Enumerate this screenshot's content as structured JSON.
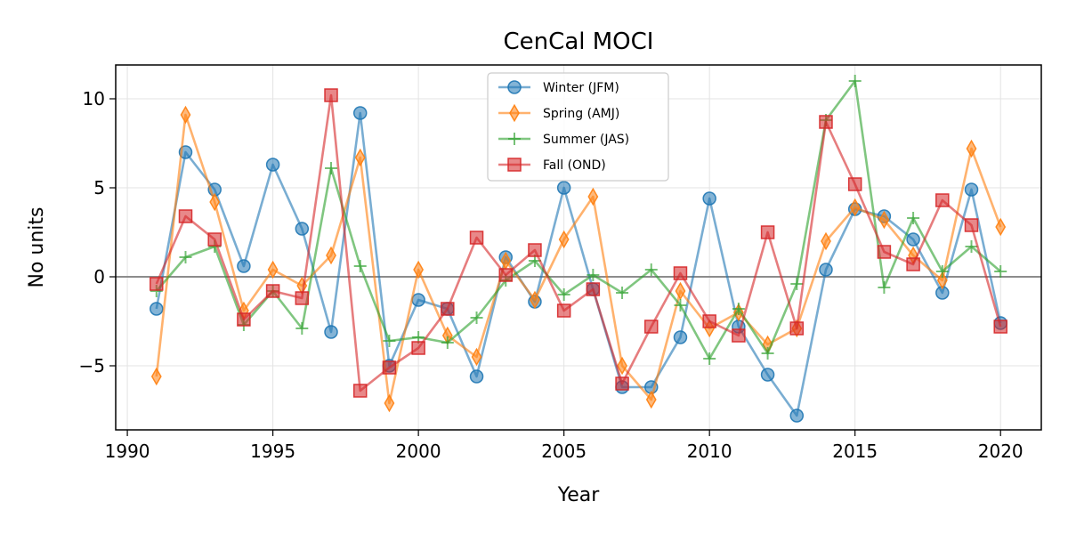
{
  "chart_data": {
    "type": "line",
    "title": "CenCal MOCI",
    "xlabel": "Year",
    "ylabel": "No units",
    "xlim": [
      1989.6,
      2021.4
    ],
    "ylim": [
      -8.6,
      11.9
    ],
    "xticks": [
      1990,
      1995,
      2000,
      2005,
      2010,
      2015,
      2020
    ],
    "yticks": [
      -5,
      0,
      5,
      10
    ],
    "ytick_labels": [
      "−5",
      "0",
      "5",
      "10"
    ],
    "grid": true,
    "zero_line": true,
    "legend_position": "upper center",
    "x": [
      1991,
      1992,
      1993,
      1994,
      1995,
      1996,
      1997,
      1998,
      1999,
      2000,
      2001,
      2002,
      2003,
      2004,
      2005,
      2006,
      2007,
      2008,
      2009,
      2010,
      2011,
      2012,
      2013,
      2014,
      2015,
      2016,
      2017,
      2018,
      2019,
      2020
    ],
    "series": [
      {
        "name": "Winter (JFM)",
        "color": "#1f77b4",
        "marker": "circle",
        "values": [
          -1.8,
          7.0,
          4.9,
          0.6,
          6.3,
          2.7,
          -3.1,
          9.2,
          -5.0,
          -1.3,
          -1.8,
          -5.6,
          1.1,
          -1.4,
          5.0,
          -0.7,
          -6.2,
          -6.2,
          -3.4,
          4.4,
          -2.8,
          -5.5,
          -7.8,
          0.4,
          3.8,
          3.4,
          2.1,
          -0.9,
          4.9,
          -2.6
        ]
      },
      {
        "name": "Spring (AMJ)",
        "color": "#ff7f0e",
        "marker": "diamond",
        "values": [
          -5.6,
          9.1,
          4.2,
          -1.9,
          0.4,
          -0.5,
          1.2,
          6.7,
          -7.1,
          0.4,
          -3.3,
          -4.5,
          0.9,
          -1.3,
          2.1,
          4.5,
          -5.0,
          -6.9,
          -0.8,
          -2.9,
          -2.0,
          -3.8,
          -2.9,
          2.0,
          3.9,
          3.2,
          1.2,
          -0.2,
          7.2,
          2.8
        ]
      },
      {
        "name": "Summer (JAS)",
        "color": "#2ca02c",
        "marker": "plus",
        "values": [
          -0.8,
          1.1,
          1.7,
          -2.7,
          -0.8,
          -2.9,
          6.1,
          0.6,
          -3.6,
          -3.4,
          -3.7,
          -2.3,
          -0.2,
          0.9,
          -1.0,
          0.1,
          -0.9,
          0.4,
          -1.6,
          -4.6,
          -1.8,
          -4.3,
          -0.4,
          8.8,
          11.0,
          -0.6,
          3.3,
          0.3,
          1.7,
          0.3
        ]
      },
      {
        "name": "Fall (OND)",
        "color": "#d62728",
        "marker": "square",
        "values": [
          -0.4,
          3.4,
          2.1,
          -2.4,
          -0.8,
          -1.2,
          10.2,
          -6.4,
          -5.1,
          -4.0,
          -1.8,
          2.2,
          0.1,
          1.5,
          -1.9,
          -0.7,
          -6.0,
          -2.8,
          0.2,
          -2.5,
          -3.3,
          2.5,
          -2.9,
          8.7,
          5.2,
          1.4,
          0.7,
          4.3,
          2.9,
          -2.8
        ]
      }
    ]
  }
}
